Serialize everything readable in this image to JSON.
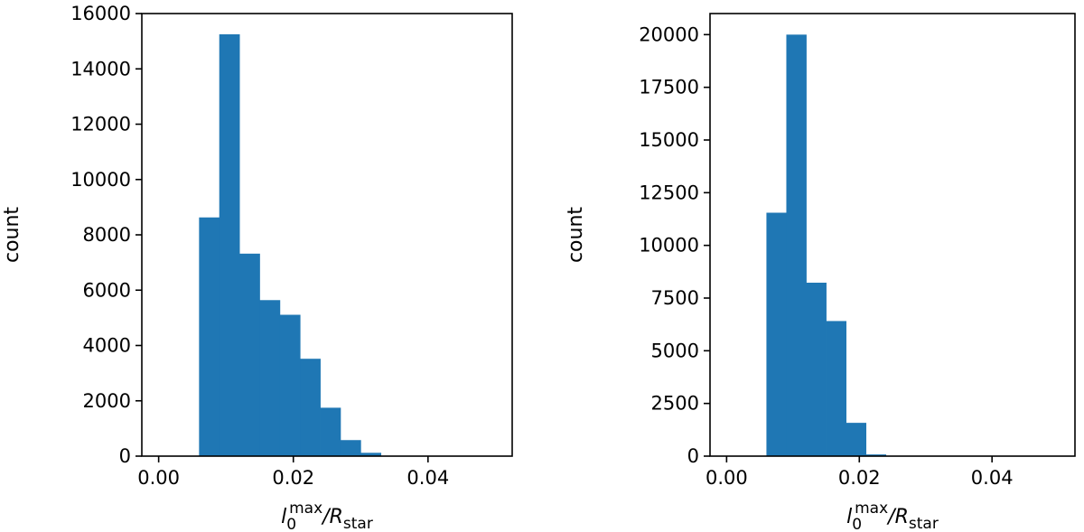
{
  "colors": {
    "bar": "#1f77b4"
  },
  "chart_data": [
    {
      "type": "bar",
      "subtype": "histogram",
      "xlabel": {
        "base": "l",
        "sub": "0",
        "sup": "max",
        "sep": "/",
        "base2": "R",
        "sub2": "star"
      },
      "ylabel": "count",
      "xlim": [
        -0.0025,
        0.0525
      ],
      "ylim": [
        0,
        16000
      ],
      "xticks": [
        0.0,
        0.02,
        0.04
      ],
      "xtick_labels": [
        "0.00",
        "0.02",
        "0.04"
      ],
      "yticks": [
        0,
        2000,
        4000,
        6000,
        8000,
        10000,
        12000,
        14000,
        16000
      ],
      "ytick_labels": [
        "0",
        "2000",
        "4000",
        "6000",
        "8000",
        "10000",
        "12000",
        "14000",
        "16000"
      ],
      "bin_edges": [
        0.0,
        0.003,
        0.006,
        0.009,
        0.012,
        0.015,
        0.018,
        0.021,
        0.024,
        0.027,
        0.03,
        0.033,
        0.036,
        0.039,
        0.042,
        0.045,
        0.048,
        0.051
      ],
      "values": [
        0,
        0,
        8630,
        15250,
        7320,
        5640,
        5110,
        3520,
        1750,
        580,
        120,
        10,
        0,
        0,
        0,
        0,
        0
      ]
    },
    {
      "type": "bar",
      "subtype": "histogram",
      "xlabel": {
        "base": "l",
        "sub": "0",
        "sup": "max",
        "sep": "/",
        "base2": "R",
        "sub2": "star"
      },
      "ylabel": "count",
      "xlim": [
        -0.0025,
        0.0525
      ],
      "ylim": [
        0,
        21000
      ],
      "xticks": [
        0.0,
        0.02,
        0.04
      ],
      "xtick_labels": [
        "0.00",
        "0.02",
        "0.04"
      ],
      "yticks": [
        0,
        2500,
        5000,
        7500,
        10000,
        12500,
        15000,
        17500,
        20000
      ],
      "ytick_labels": [
        "0",
        "2500",
        "5000",
        "7500",
        "10000",
        "12500",
        "15000",
        "17500",
        "20000"
      ],
      "bin_edges": [
        0.0,
        0.003,
        0.006,
        0.009,
        0.012,
        0.015,
        0.018,
        0.021,
        0.024,
        0.027,
        0.03,
        0.033,
        0.036,
        0.039,
        0.042,
        0.045,
        0.048,
        0.051
      ],
      "values": [
        0,
        0,
        11550,
        20000,
        8230,
        6410,
        1580,
        80,
        0,
        0,
        0,
        0,
        0,
        0,
        0,
        0,
        0
      ]
    }
  ]
}
